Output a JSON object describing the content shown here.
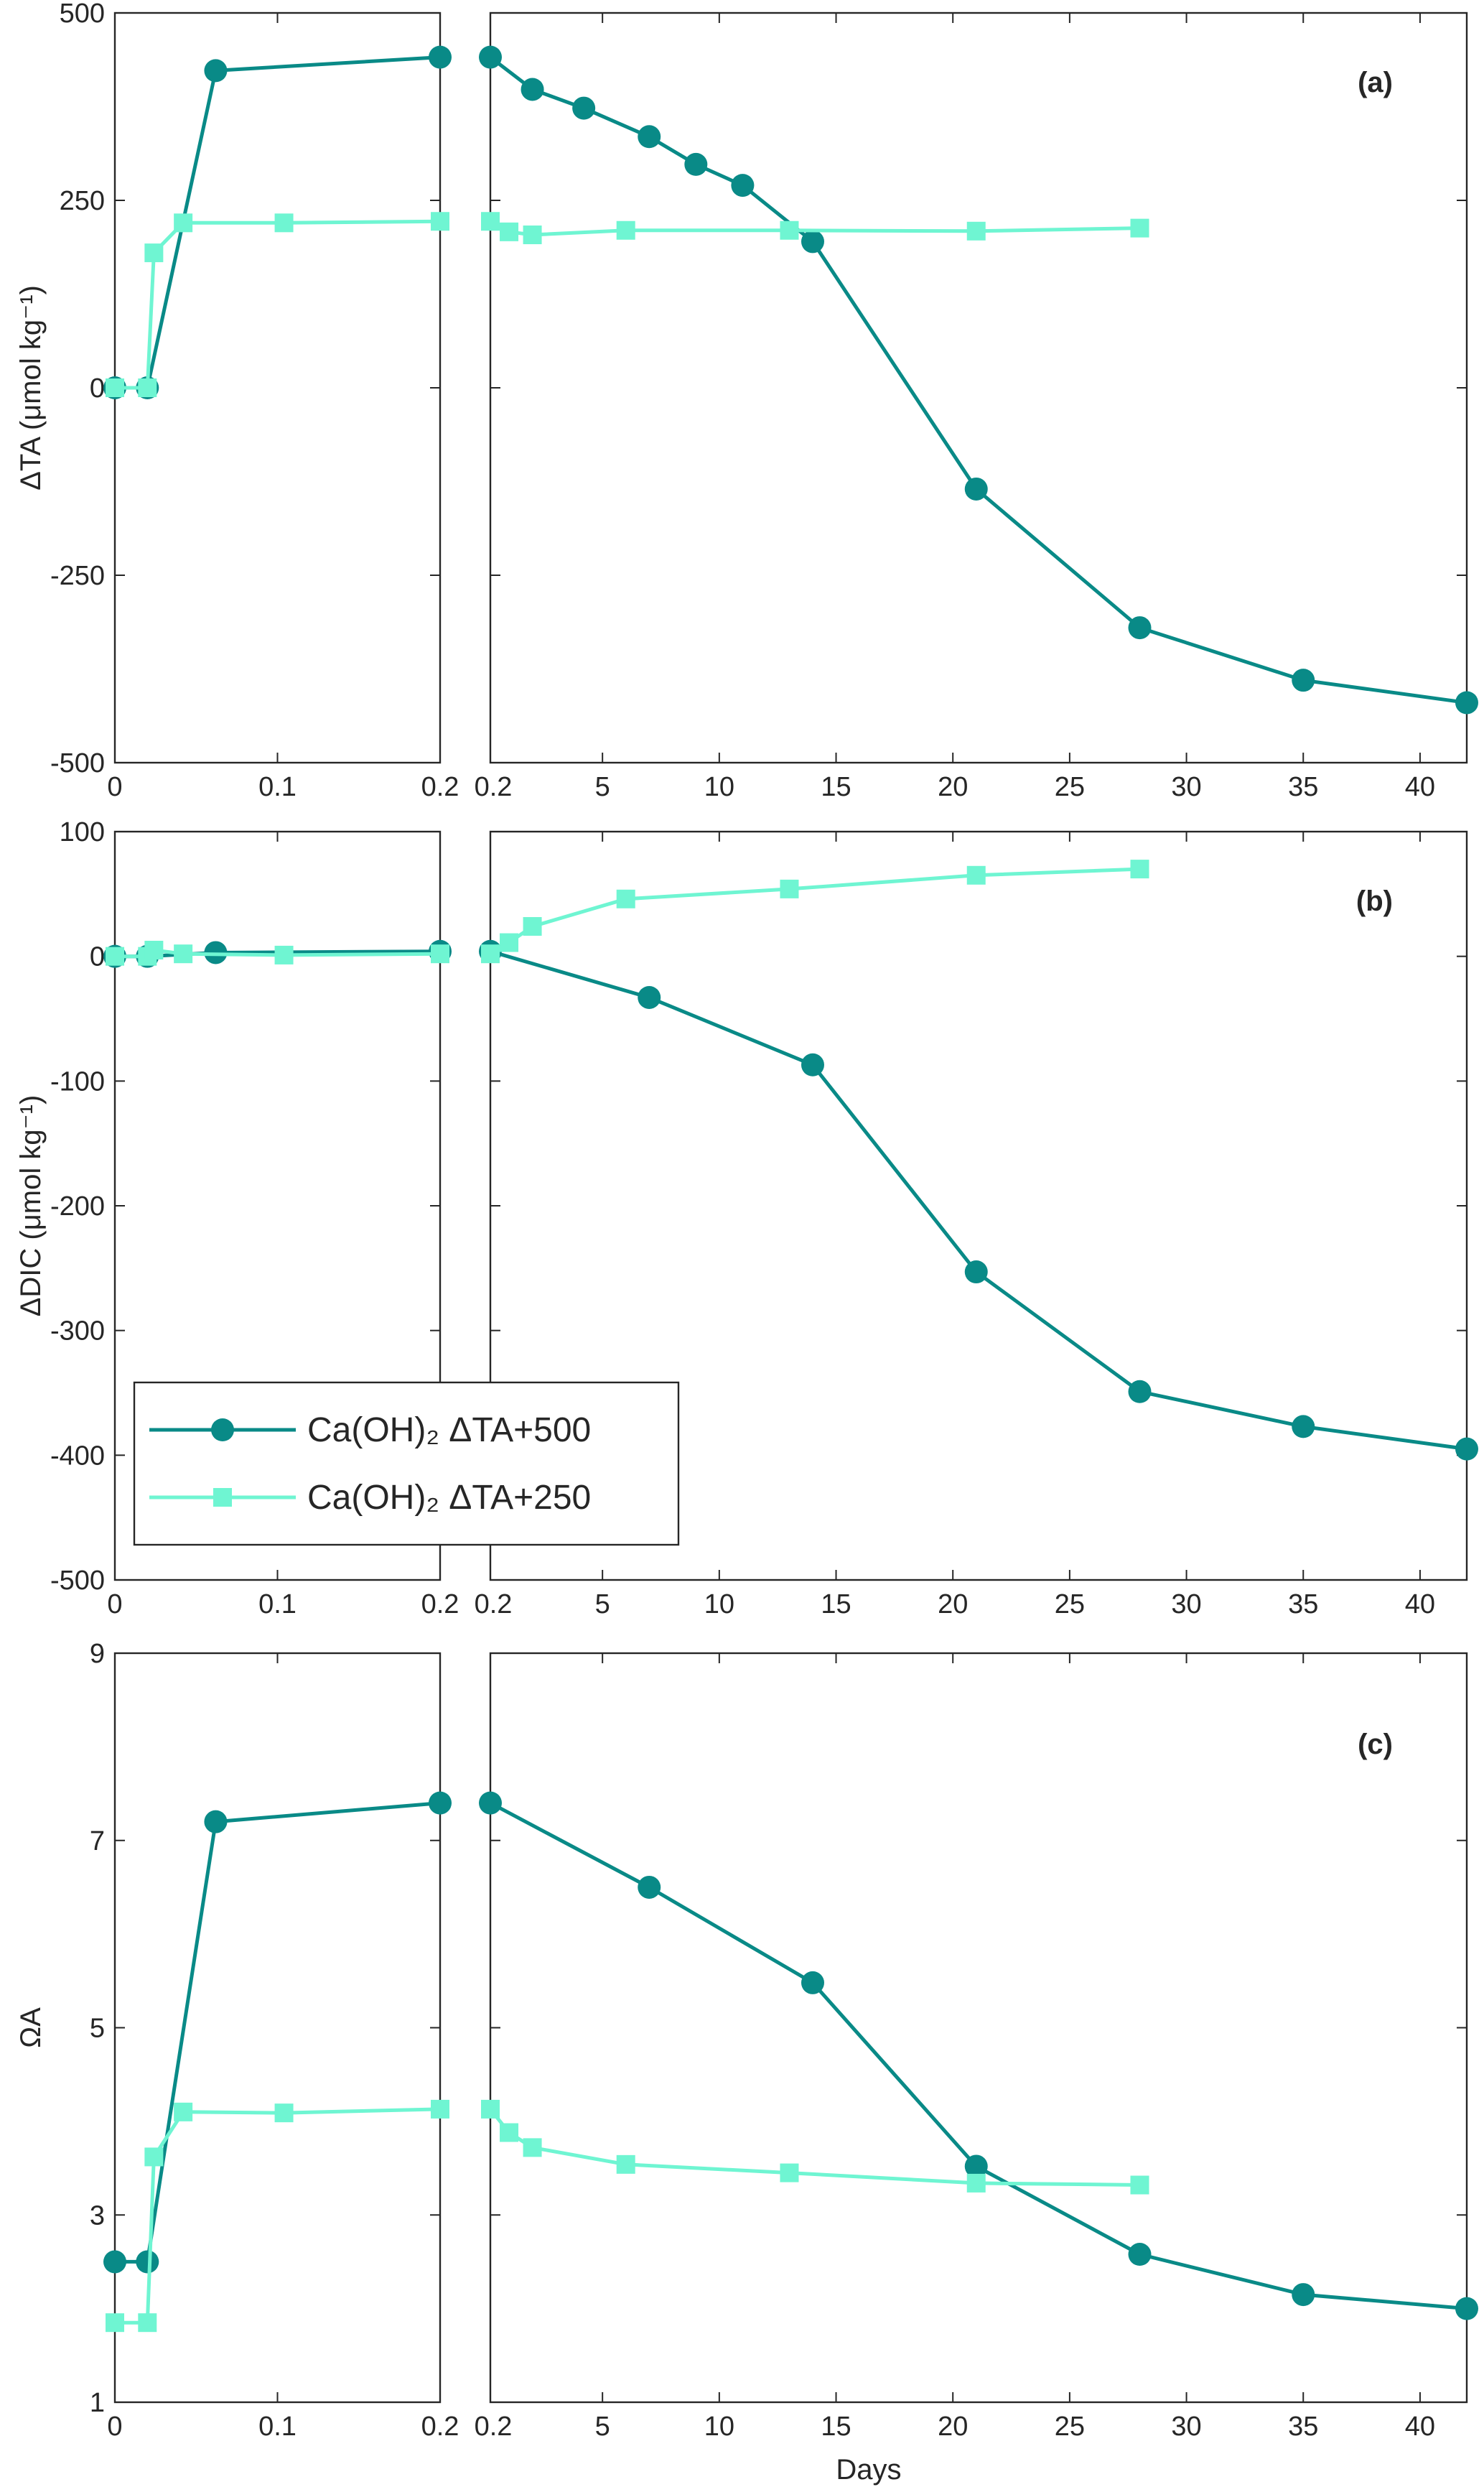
{
  "colors": {
    "series_500": "#098a87",
    "series_250": "#6ff5d2",
    "axis": "#262626",
    "background": "#ffffff"
  },
  "chart_data": {
    "type": "line",
    "xlabel": "Days",
    "legend": {
      "placement": "lower-left (panel b)",
      "entries": [
        {
          "label": "Ca(OH)₂ ΔTA+500",
          "marker": "circle"
        },
        {
          "label": "Ca(OH)₂ ΔTA+250",
          "marker": "square"
        }
      ]
    },
    "x_axes": {
      "left": {
        "range": [
          0,
          0.2
        ],
        "ticks": [
          0,
          0.1,
          0.2
        ],
        "tick_labels": [
          "0",
          "0.1",
          "0.2"
        ]
      },
      "right": {
        "range": [
          0.2,
          42
        ],
        "ticks": [
          0.2,
          5,
          10,
          15,
          20,
          25,
          30,
          35,
          40
        ],
        "tick_labels": [
          "0.2",
          "5",
          "10",
          "15",
          "20",
          "25",
          "30",
          "35",
          "40"
        ]
      }
    },
    "panels": [
      {
        "id": "a",
        "tag": "(a)",
        "ylabel": "ΔTA (μmol kg⁻¹)",
        "ylim": [
          -500,
          500
        ],
        "yticks": [
          -500,
          -250,
          0,
          250,
          500
        ],
        "ytick_labels": [
          "-500",
          "-250",
          "0",
          "250",
          "500"
        ],
        "series": [
          {
            "name": "Ca(OH)₂ ΔTA+500",
            "color_key": "series_500",
            "marker": "circle",
            "left": [
              [
                0,
                0
              ],
              [
                0.02,
                0
              ],
              [
                0.062,
                423
              ],
              [
                0.2,
                441
              ]
            ],
            "right": [
              [
                0.2,
                441
              ],
              [
                2,
                398
              ],
              [
                4.2,
                373
              ],
              [
                7,
                335
              ],
              [
                9,
                298
              ],
              [
                11,
                270
              ],
              [
                14,
                195
              ],
              [
                21,
                -135
              ],
              [
                28,
                -320
              ],
              [
                35,
                -390
              ],
              [
                42,
                -420
              ]
            ]
          },
          {
            "name": "Ca(OH)₂ ΔTA+250",
            "color_key": "series_250",
            "marker": "square",
            "left": [
              [
                0,
                0
              ],
              [
                0.02,
                0
              ],
              [
                0.024,
                180
              ],
              [
                0.042,
                220
              ],
              [
                0.104,
                220
              ],
              [
                0.2,
                222
              ]
            ],
            "right": [
              [
                0.2,
                222
              ],
              [
                1,
                208
              ],
              [
                2,
                204
              ],
              [
                6,
                210
              ],
              [
                13,
                210
              ],
              [
                21,
                209
              ],
              [
                28,
                213
              ]
            ]
          }
        ]
      },
      {
        "id": "b",
        "tag": "(b)",
        "ylabel": "ΔDIC (μmol kg⁻¹)",
        "ylim": [
          -500,
          100
        ],
        "yticks": [
          -500,
          -400,
          -300,
          -200,
          -100,
          0,
          100
        ],
        "ytick_labels": [
          "-500",
          "-400",
          "-300",
          "-200",
          "-100",
          "0",
          "100"
        ],
        "series": [
          {
            "name": "Ca(OH)₂ ΔTA+500",
            "color_key": "series_500",
            "marker": "circle",
            "left": [
              [
                0,
                0
              ],
              [
                0.02,
                0
              ],
              [
                0.062,
                3
              ],
              [
                0.2,
                4
              ]
            ],
            "right": [
              [
                0.2,
                4
              ],
              [
                7,
                -33
              ],
              [
                14,
                -87
              ],
              [
                21,
                -253
              ],
              [
                28,
                -349
              ],
              [
                35,
                -377
              ],
              [
                42,
                -395
              ]
            ]
          },
          {
            "name": "Ca(OH)₂ ΔTA+250",
            "color_key": "series_250",
            "marker": "square",
            "left": [
              [
                0,
                0
              ],
              [
                0.02,
                0
              ],
              [
                0.024,
                5
              ],
              [
                0.042,
                2
              ],
              [
                0.104,
                1
              ],
              [
                0.2,
                2
              ]
            ],
            "right": [
              [
                0.2,
                2
              ],
              [
                1,
                11
              ],
              [
                2,
                24
              ],
              [
                6,
                46
              ],
              [
                13,
                54
              ],
              [
                21,
                65
              ],
              [
                28,
                70
              ]
            ]
          }
        ]
      },
      {
        "id": "c",
        "tag": "(c)",
        "ylabel": "ΩA",
        "ylim": [
          1,
          9
        ],
        "yticks": [
          1,
          3,
          5,
          7,
          9
        ],
        "ytick_labels": [
          "1",
          "3",
          "5",
          "7",
          "9"
        ],
        "series": [
          {
            "name": "Ca(OH)₂ ΔTA+500",
            "color_key": "series_500",
            "marker": "circle",
            "left": [
              [
                0,
                2.5
              ],
              [
                0.02,
                2.5
              ],
              [
                0.062,
                7.2
              ],
              [
                0.2,
                7.4
              ]
            ],
            "right": [
              [
                0.2,
                7.4
              ],
              [
                7,
                6.5
              ],
              [
                14,
                5.48
              ],
              [
                21,
                3.52
              ],
              [
                28,
                2.58
              ],
              [
                35,
                2.15
              ],
              [
                42,
                2.0
              ]
            ]
          },
          {
            "name": "Ca(OH)₂ ΔTA+250",
            "color_key": "series_250",
            "marker": "square",
            "left": [
              [
                0,
                1.85
              ],
              [
                0.02,
                1.85
              ],
              [
                0.024,
                3.62
              ],
              [
                0.042,
                4.1
              ],
              [
                0.104,
                4.09
              ],
              [
                0.2,
                4.13
              ]
            ],
            "right": [
              [
                0.2,
                4.13
              ],
              [
                1,
                3.88
              ],
              [
                2,
                3.72
              ],
              [
                6,
                3.54
              ],
              [
                13,
                3.45
              ],
              [
                21,
                3.34
              ],
              [
                28,
                3.32
              ]
            ]
          }
        ]
      }
    ]
  }
}
